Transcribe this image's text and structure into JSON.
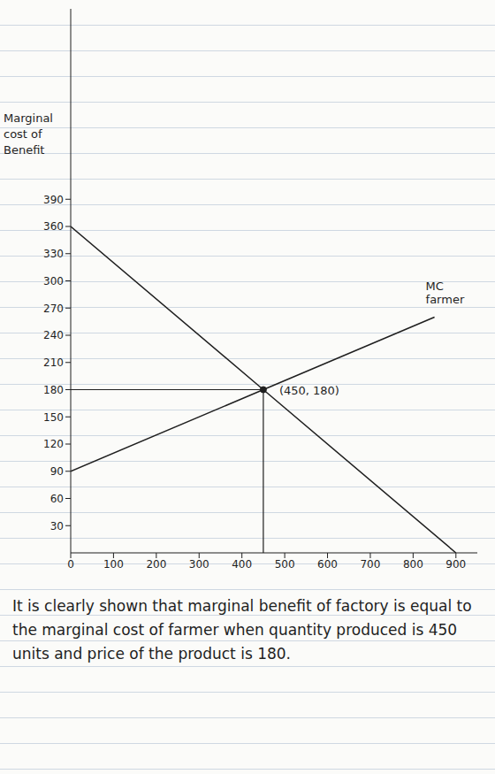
{
  "chart_data": {
    "type": "line",
    "y_label": "Marginal cost of Benefit",
    "xlim": [
      0,
      950
    ],
    "ylim": [
      0,
      600
    ],
    "xticks": [
      0,
      100,
      200,
      300,
      400,
      500,
      600,
      700,
      800,
      900
    ],
    "yticks": [
      30,
      60,
      90,
      120,
      150,
      180,
      210,
      240,
      270,
      300,
      330,
      360,
      390
    ],
    "series": [
      {
        "color": "#1f1f1f",
        "x": [
          0,
          450,
          900
        ],
        "values": [
          360,
          180,
          0
        ]
      },
      {
        "name": "MC farmer",
        "color": "#1f1f1f",
        "x": [
          0,
          450,
          850
        ],
        "values": [
          90,
          180,
          260
        ]
      }
    ],
    "annotations": [
      {
        "text": "(450, 180)",
        "x": 450,
        "y": 180
      }
    ],
    "caption": "It is clearly shown that marginal benefit of factory is equal to the marginal cost of farmer when quantity produced is 450 units and price of the product is 180."
  }
}
